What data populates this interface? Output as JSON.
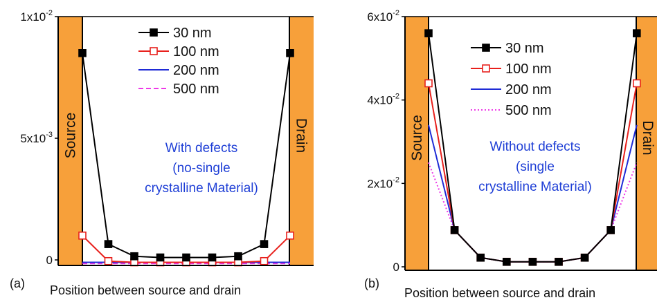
{
  "chart_data": [
    {
      "type": "line",
      "panel_label": "(a)",
      "xlabel": "Position between source and drain",
      "x": [
        1,
        2,
        3,
        4,
        5,
        6,
        7,
        8,
        9
      ],
      "ylim": [
        0,
        0.01
      ],
      "yticks": [
        {
          "value": 0,
          "base": "0",
          "exp": ""
        },
        {
          "value": 0.005,
          "base": "5x10",
          "exp": "-3"
        },
        {
          "value": 0.01,
          "base": "1x10",
          "exp": "-2"
        }
      ],
      "electrodes": {
        "left": "Source",
        "right": "Drain",
        "color": "#f7a03a"
      },
      "annotation": [
        "With defects",
        "(no-single",
        "crystalline Material)"
      ],
      "series": [
        {
          "name": "30 nm",
          "color": "#000000",
          "marker": "filled-square",
          "dash": "",
          "values": [
            0.0085,
            0.00065,
            0.00015,
            0.0001,
            0.0001,
            0.0001,
            0.00015,
            0.00065,
            0.0085
          ]
        },
        {
          "name": "100 nm",
          "color": "#e8201c",
          "marker": "open-square",
          "dash": "",
          "values": [
            0.001,
            -5e-05,
            -0.0001,
            -0.0001,
            -0.0001,
            -0.0001,
            -0.0001,
            -5e-05,
            0.001
          ]
        },
        {
          "name": "200 nm",
          "color": "#1f2bd6",
          "marker": "none",
          "dash": "",
          "values": [
            -0.0001,
            -0.0001,
            -0.0001,
            -0.0001,
            -0.0001,
            -0.0001,
            -0.0001,
            -0.0001,
            -0.0001
          ]
        },
        {
          "name": "500 nm",
          "color": "#ee38e8",
          "marker": "none",
          "dash": "7,4",
          "values": [
            -0.00015,
            -0.00015,
            -0.00015,
            -0.00015,
            -0.00015,
            -0.00015,
            -0.00015,
            -0.00015,
            -0.00015
          ]
        }
      ]
    },
    {
      "type": "line",
      "panel_label": "(b)",
      "xlabel": "Position between source and drain",
      "x": [
        1,
        2,
        3,
        4,
        5,
        6,
        7,
        8,
        9
      ],
      "ylim": [
        0,
        0.06
      ],
      "yticks": [
        {
          "value": 0,
          "base": "0",
          "exp": ""
        },
        {
          "value": 0.02,
          "base": "2x10",
          "exp": "-2"
        },
        {
          "value": 0.04,
          "base": "4x10",
          "exp": "-2"
        },
        {
          "value": 0.06,
          "base": "6x10",
          "exp": "-2"
        }
      ],
      "electrodes": {
        "left": "Source",
        "right": "Drain",
        "color": "#f7a03a"
      },
      "annotation": [
        "Without defects",
        "(single",
        "crystalline Material)"
      ],
      "series": [
        {
          "name": "30 nm",
          "color": "#000000",
          "marker": "filled-square",
          "dash": "",
          "values": [
            0.056,
            0.0088,
            0.0022,
            0.0012,
            0.0012,
            0.0012,
            0.0022,
            0.0088,
            0.056
          ]
        },
        {
          "name": "100 nm",
          "color": "#e8201c",
          "marker": "open-square",
          "dash": "",
          "values": [
            0.044,
            0.0088,
            0.0022,
            0.0012,
            0.0012,
            0.0012,
            0.0022,
            0.0088,
            0.044
          ]
        },
        {
          "name": "200 nm",
          "color": "#1f2bd6",
          "marker": "none",
          "dash": "",
          "values": [
            0.034,
            0.0088,
            0.0022,
            0.0012,
            0.0012,
            0.0012,
            0.0022,
            0.0088,
            0.034
          ]
        },
        {
          "name": "500 nm",
          "color": "#ee38e8",
          "marker": "none",
          "dash": "2,3",
          "values": [
            0.025,
            0.0088,
            0.0022,
            0.0012,
            0.0012,
            0.0012,
            0.0022,
            0.0088,
            0.025
          ]
        }
      ]
    }
  ]
}
